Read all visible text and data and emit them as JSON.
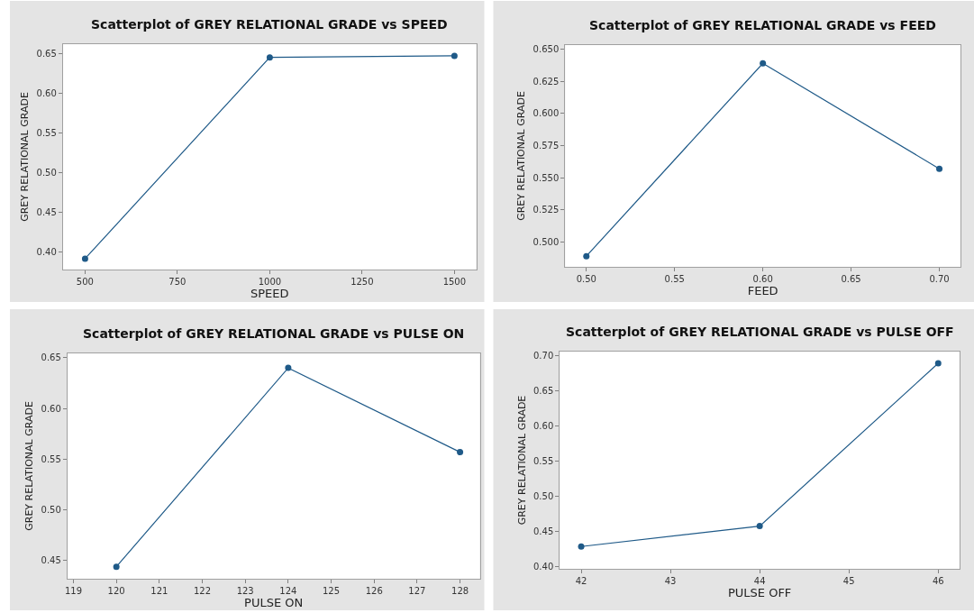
{
  "chart_data": [
    {
      "type": "line",
      "title": "Scatterplot of GREY RELATIONAL GRADE vs SPEED",
      "xlabel": "SPEED",
      "ylabel": "GREY RELATIONAL GRADE",
      "marker": "circle",
      "line_style": "solid",
      "grid": false,
      "x": [
        500,
        1000,
        1500
      ],
      "series": [
        {
          "color": "#1f5a88",
          "values": [
            0.391,
            0.645,
            0.647
          ]
        }
      ],
      "xlim": [
        440,
        1559
      ],
      "ylim": [
        0.377,
        0.662
      ],
      "xticks": [
        500,
        750,
        1000,
        1250,
        1500
      ],
      "yticks": [
        {
          "value": 0.4,
          "label": "0.40"
        },
        {
          "value": 0.45,
          "label": "0.45"
        },
        {
          "value": 0.5,
          "label": "0.50"
        },
        {
          "value": 0.55,
          "label": "0.55"
        },
        {
          "value": 0.6,
          "label": "0.60"
        },
        {
          "value": 0.65,
          "label": "0.65"
        }
      ]
    },
    {
      "type": "line",
      "title": "Scatterplot of GREY RELATIONAL GRADE vs FEED",
      "xlabel": "FEED",
      "ylabel": "GREY RELATIONAL GRADE",
      "marker": "circle",
      "line_style": "solid",
      "grid": false,
      "x": [
        0.5,
        0.6,
        0.7
      ],
      "series": [
        {
          "color": "#1f5a88",
          "values": [
            0.489,
            0.639,
            0.557
          ]
        }
      ],
      "xlim": [
        0.488,
        0.712
      ],
      "ylim": [
        0.4805,
        0.6534
      ],
      "xticks": [
        {
          "value": 0.5,
          "label": "0.50"
        },
        {
          "value": 0.55,
          "label": "0.55"
        },
        {
          "value": 0.6,
          "label": "0.60"
        },
        {
          "value": 0.65,
          "label": "0.65"
        },
        {
          "value": 0.7,
          "label": "0.70"
        }
      ],
      "yticks": [
        {
          "value": 0.5,
          "label": "0.500"
        },
        {
          "value": 0.525,
          "label": "0.525"
        },
        {
          "value": 0.55,
          "label": "0.550"
        },
        {
          "value": 0.575,
          "label": "0.575"
        },
        {
          "value": 0.6,
          "label": "0.600"
        },
        {
          "value": 0.625,
          "label": "0.625"
        },
        {
          "value": 0.65,
          "label": "0.650"
        }
      ]
    },
    {
      "type": "line",
      "title": "Scatterplot of GREY RELATIONAL GRADE vs PULSE ON",
      "xlabel": "PULSE ON",
      "ylabel": "GREY RELATIONAL GRADE",
      "marker": "circle",
      "line_style": "solid",
      "grid": false,
      "x": [
        120,
        124,
        128
      ],
      "series": [
        {
          "color": "#1f5a88",
          "values": [
            0.444,
            0.64,
            0.557
          ]
        }
      ],
      "xlim": [
        118.86,
        128.46
      ],
      "ylim": [
        0.432,
        0.6546
      ],
      "xticks": [
        119,
        120,
        121,
        122,
        123,
        124,
        125,
        126,
        127,
        128
      ],
      "yticks": [
        {
          "value": 0.45,
          "label": "0.45"
        },
        {
          "value": 0.5,
          "label": "0.50"
        },
        {
          "value": 0.55,
          "label": "0.55"
        },
        {
          "value": 0.6,
          "label": "0.60"
        },
        {
          "value": 0.65,
          "label": "0.65"
        }
      ]
    },
    {
      "type": "line",
      "title": "Scatterplot of GREY RELATIONAL GRADE vs PULSE OFF",
      "xlabel": "PULSE OFF",
      "ylabel": "GREY RELATIONAL GRADE",
      "marker": "circle",
      "line_style": "solid",
      "grid": false,
      "x": [
        42,
        44,
        46
      ],
      "series": [
        {
          "color": "#1f5a88",
          "values": [
            0.429,
            0.458,
            0.689
          ]
        }
      ],
      "xlim": [
        41.76,
        46.24
      ],
      "ylim": [
        0.397,
        0.706
      ],
      "xticks": [
        42,
        43,
        44,
        45,
        46
      ],
      "yticks": [
        {
          "value": 0.4,
          "label": "0.40"
        },
        {
          "value": 0.45,
          "label": "0.45"
        },
        {
          "value": 0.5,
          "label": "0.50"
        },
        {
          "value": 0.55,
          "label": "0.55"
        },
        {
          "value": 0.6,
          "label": "0.60"
        },
        {
          "value": 0.65,
          "label": "0.65"
        },
        {
          "value": 0.7,
          "label": "0.70"
        }
      ]
    }
  ]
}
